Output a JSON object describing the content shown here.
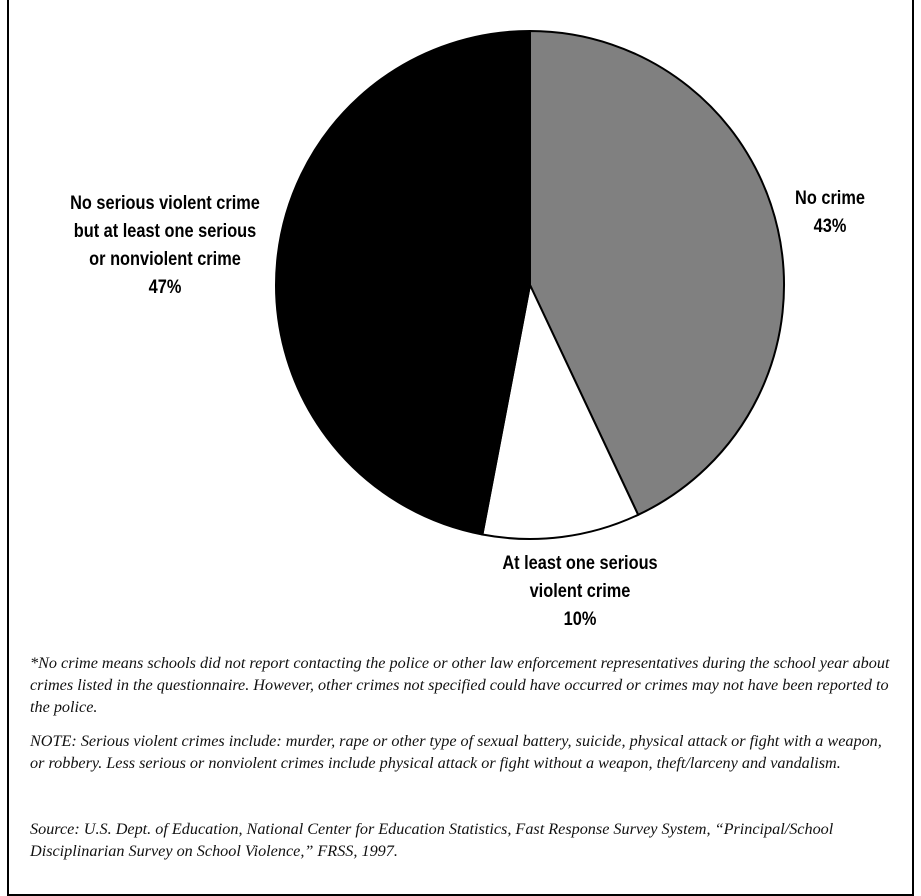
{
  "chart_data": {
    "type": "pie",
    "title": "",
    "slices": [
      {
        "label_lines": [
          "No crime",
          "43%"
        ],
        "value": 43,
        "color": "#808080"
      },
      {
        "label_lines": [
          "At least one serious",
          "violent crime",
          "10%"
        ],
        "value": 10,
        "color": "#ffffff"
      },
      {
        "label_lines": [
          "No serious violent crime",
          "but at least one serious",
          "or nonviolent crime",
          "47%"
        ],
        "value": 47,
        "color": "#000000"
      }
    ]
  },
  "notes": {
    "footnote": "*No crime means schools did not report contacting the police or other law enforcement representatives during the school year about crimes listed in the questionnaire. However, other crimes not specified could have occurred or crimes may not have been reported to the police.",
    "note": "NOTE: Serious violent crimes include: murder, rape or other type of sexual battery, suicide, physical attack or fight with a weapon, or robbery. Less serious or nonviolent crimes include physical attack or fight without a weapon, theft/larceny and vandalism.",
    "source": "Source: U.S. Dept. of Education, National Center for Education Statistics, Fast Response Survey System, “Principal/School Disciplinarian Survey on School Violence,” FRSS, 1997."
  }
}
